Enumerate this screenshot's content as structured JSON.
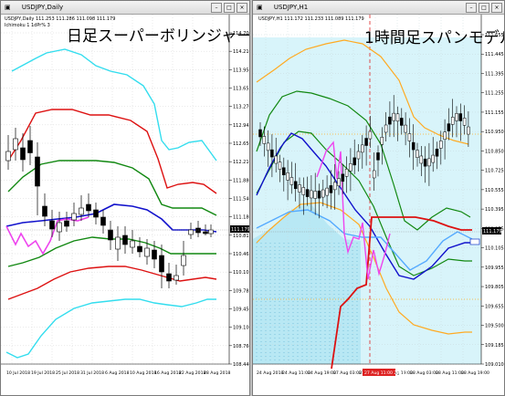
{
  "left_window": {
    "title": "USDJPY,Daily",
    "symbol_line": "USDJPY,Daily  111.253 111.286 111.098 111.179",
    "indicator_line": "Ichimoku 1 1dPr% 3",
    "overlay_title": "日足スーパーボリンジャー",
    "price_labels": [
      "114.700",
      "114.210",
      "113.950",
      "113.655",
      "113.270",
      "112.945",
      "112.650",
      "112.210",
      "111.880",
      "111.540",
      "111.180",
      "110.815",
      "110.465",
      "110.105",
      "109.785",
      "109.450",
      "109.100",
      "108.760",
      "108.440"
    ],
    "current_price": "111.179",
    "date_labels": [
      "10 Jul 2018",
      "19 Jul 2018",
      "25 Jul 2018",
      "31 Jul 2018",
      "6 Aug 2018",
      "10 Aug 2018",
      "16 Aug 2018",
      "22 Aug 2018",
      "28 Aug 2018"
    ]
  },
  "right_window": {
    "title": "USDJPY,H1",
    "symbol_line": "USDJPY,H1  111.172 111.233 111.089 111.179",
    "overlay_title": "1時間足スパンモデル",
    "price_labels": [
      "111.655",
      "111.445",
      "111.395",
      "111.255",
      "111.155",
      "110.950",
      "110.850",
      "110.725",
      "110.555",
      "110.395",
      "110.255",
      "110.105",
      "109.955",
      "109.805",
      "109.655",
      "109.500",
      "109.185",
      "109.010"
    ],
    "current_price": "111.179",
    "date_labels": [
      "24 Aug 2018",
      "24 Aug 11:00",
      "24 Aug 19:00",
      "27 Aug 03:00",
      "27 Aug 11:00",
      "27 Aug 19:00",
      "28 Aug 03:00",
      "28 Aug 11:00",
      "28 Aug 19:00"
    ],
    "highlight_date": "27 Aug 11:00 2018"
  },
  "colors": {
    "bb_outer": "#33ddee",
    "bb_2": "#dd1111",
    "bb_1": "#118811",
    "middle": "#1111cc",
    "chikou": "#ee44ee",
    "span_blue": "#55aaff",
    "span_cloud_bg": "#d8f4fa",
    "orange": "#ffaa22",
    "price_tag_bg": "#000000"
  },
  "icons": [
    "chart-window-icon",
    "minimize-icon",
    "maximize-icon",
    "close-icon"
  ]
}
